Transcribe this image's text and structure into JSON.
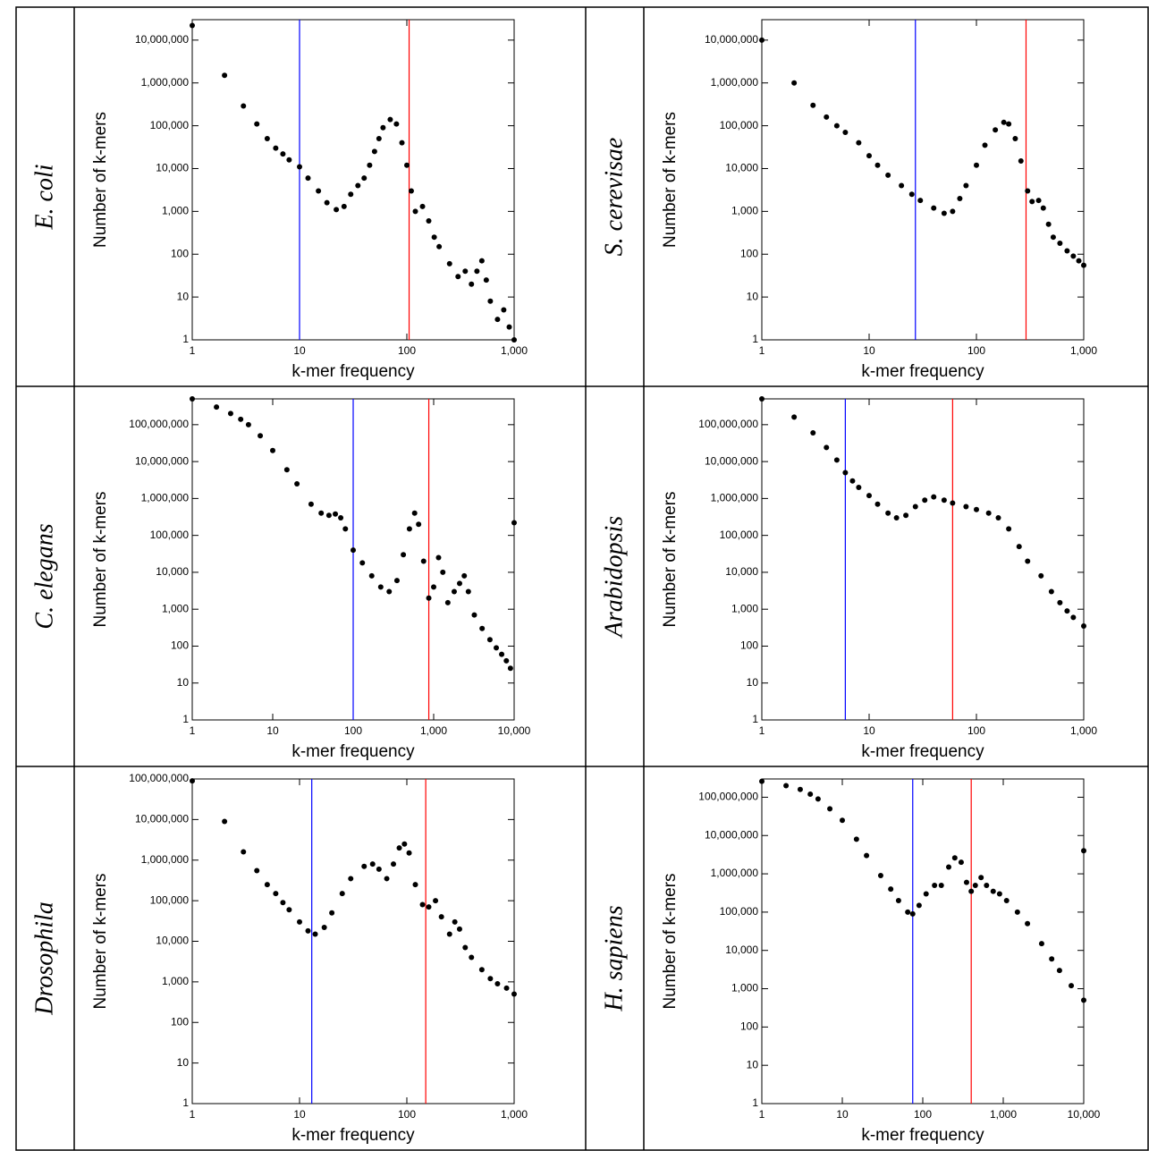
{
  "chart_data": [
    {
      "type": "scatter",
      "title": "E. coli",
      "x_label": "k-mer frequency",
      "y_label": "Number of k-mers",
      "log_x": true,
      "log_y": true,
      "grid": false,
      "xlim": [
        1,
        1000
      ],
      "ylim": [
        1,
        30000000
      ],
      "xticks": [
        1,
        10,
        100,
        {
          "value": 1000,
          "label": "1,000"
        }
      ],
      "yticks": [
        1,
        10,
        100,
        {
          "value": 1000,
          "label": "1,000"
        },
        {
          "value": 10000,
          "label": "10,000"
        },
        {
          "value": 100000,
          "label": "100,000"
        },
        {
          "value": 1000000,
          "label": "1,000,000"
        },
        {
          "value": 10000000,
          "label": "10,000,000"
        }
      ],
      "vlines": [
        {
          "x": 10,
          "color": "#0000ff"
        },
        {
          "x": 105,
          "color": "#ff0000"
        }
      ],
      "series": [
        {
          "color": "#000000",
          "x": [
            1,
            2,
            3,
            4,
            5,
            6,
            7,
            8,
            10,
            12,
            15,
            18,
            22,
            26,
            30,
            35,
            40,
            45,
            50,
            55,
            60,
            70,
            80,
            90,
            100,
            110,
            120,
            140,
            160,
            180,
            200,
            250,
            300,
            350,
            400,
            450,
            500,
            550,
            600,
            700,
            800,
            900,
            1000
          ],
          "y": [
            22000000,
            1500000,
            290000,
            110000,
            50000,
            30000,
            22000,
            16000,
            11000,
            6000,
            3000,
            1600,
            1100,
            1300,
            2500,
            4000,
            6000,
            12000,
            25000,
            50000,
            90000,
            140000,
            110000,
            40000,
            12000,
            3000,
            1000,
            1300,
            600,
            250,
            150,
            60,
            30,
            40,
            20,
            40,
            70,
            25,
            8,
            3,
            5,
            2,
            1
          ]
        }
      ]
    },
    {
      "type": "scatter",
      "title": "S. cerevisae",
      "x_label": "k-mer frequency",
      "y_label": "Number of k-mers",
      "log_x": true,
      "log_y": true,
      "grid": false,
      "xlim": [
        1,
        1000
      ],
      "ylim": [
        1,
        30000000
      ],
      "xticks": [
        1,
        10,
        100,
        {
          "value": 1000,
          "label": "1,000"
        }
      ],
      "yticks": [
        1,
        10,
        100,
        {
          "value": 1000,
          "label": "1,000"
        },
        {
          "value": 10000,
          "label": "10,000"
        },
        {
          "value": 100000,
          "label": "100,000"
        },
        {
          "value": 1000000,
          "label": "1,000,000"
        },
        {
          "value": 10000000,
          "label": "10,000,000"
        }
      ],
      "vlines": [
        {
          "x": 27,
          "color": "#0000ff"
        },
        {
          "x": 290,
          "color": "#ff0000"
        }
      ],
      "series": [
        {
          "color": "#000000",
          "x": [
            1,
            2,
            3,
            4,
            5,
            6,
            8,
            10,
            12,
            15,
            20,
            25,
            30,
            40,
            50,
            60,
            70,
            80,
            100,
            120,
            150,
            180,
            200,
            230,
            260,
            300,
            330,
            380,
            420,
            470,
            520,
            600,
            700,
            800,
            900,
            1000
          ],
          "y": [
            10000000,
            1000000,
            300000,
            160000,
            100000,
            70000,
            40000,
            20000,
            12000,
            7000,
            4000,
            2500,
            1800,
            1200,
            900,
            1000,
            2000,
            4000,
            12000,
            35000,
            80000,
            120000,
            110000,
            50000,
            15000,
            3000,
            1700,
            1800,
            1200,
            500,
            250,
            180,
            120,
            90,
            70,
            55
          ]
        }
      ]
    },
    {
      "type": "scatter",
      "title": "C. elegans",
      "x_label": "k-mer frequency",
      "y_label": "Number of k-mers",
      "log_x": true,
      "log_y": true,
      "grid": false,
      "xlim": [
        1,
        10000
      ],
      "ylim": [
        1,
        500000000
      ],
      "xticks": [
        1,
        10,
        100,
        {
          "value": 1000,
          "label": "1,000"
        },
        {
          "value": 10000,
          "label": "10,000"
        }
      ],
      "yticks": [
        1,
        10,
        100,
        {
          "value": 1000,
          "label": "1,000"
        },
        {
          "value": 10000,
          "label": "10,000"
        },
        {
          "value": 100000,
          "label": "100,000"
        },
        {
          "value": 1000000,
          "label": "1,000,000"
        },
        {
          "value": 10000000,
          "label": "10,000,000"
        },
        {
          "value": 100000000,
          "label": "100,000,000"
        }
      ],
      "vlines": [
        {
          "x": 100,
          "color": "#0000ff"
        },
        {
          "x": 870,
          "color": "#ff0000"
        }
      ],
      "series": [
        {
          "color": "#000000",
          "x": [
            1,
            2,
            3,
            4,
            5,
            7,
            10,
            15,
            20,
            30,
            40,
            50,
            60,
            70,
            80,
            100,
            130,
            170,
            220,
            280,
            350,
            420,
            500,
            580,
            650,
            750,
            870,
            1000,
            1150,
            1300,
            1500,
            1800,
            2100,
            2400,
            2700,
            3200,
            4000,
            5000,
            6000,
            7000,
            8000,
            9000,
            10000
          ],
          "y": [
            500000000,
            300000000,
            200000000,
            140000000,
            100000000,
            50000000,
            20000000,
            6000000,
            2500000,
            700000,
            400000,
            350000,
            380000,
            300000,
            150000,
            40000,
            18000,
            8000,
            4000,
            3000,
            6000,
            30000,
            150000,
            400000,
            200000,
            20000,
            2000,
            4000,
            25000,
            10000,
            1500,
            3000,
            5000,
            8000,
            3000,
            700,
            300,
            150,
            90,
            60,
            40,
            25,
            220000
          ]
        }
      ]
    },
    {
      "type": "scatter",
      "title": "Arabidopsis",
      "x_label": "k-mer frequency",
      "y_label": "Number of k-mers",
      "log_x": true,
      "log_y": true,
      "grid": false,
      "xlim": [
        1,
        1000
      ],
      "ylim": [
        1,
        500000000
      ],
      "xticks": [
        1,
        10,
        100,
        {
          "value": 1000,
          "label": "1,000"
        }
      ],
      "yticks": [
        1,
        10,
        100,
        {
          "value": 1000,
          "label": "1,000"
        },
        {
          "value": 10000,
          "label": "10,000"
        },
        {
          "value": 100000,
          "label": "100,000"
        },
        {
          "value": 1000000,
          "label": "1,000,000"
        },
        {
          "value": 10000000,
          "label": "10,000,000"
        },
        {
          "value": 100000000,
          "label": "100,000,000"
        }
      ],
      "vlines": [
        {
          "x": 6,
          "color": "#0000ff"
        },
        {
          "x": 60,
          "color": "#ff0000"
        }
      ],
      "series": [
        {
          "color": "#000000",
          "x": [
            1,
            2,
            3,
            4,
            5,
            6,
            7,
            8,
            10,
            12,
            15,
            18,
            22,
            27,
            33,
            40,
            50,
            60,
            80,
            100,
            130,
            160,
            200,
            250,
            300,
            400,
            500,
            600,
            700,
            800,
            1000
          ],
          "y": [
            500000000,
            160000000,
            60000000,
            24000000,
            11000000,
            5000000,
            3000000,
            2000000,
            1200000,
            700000,
            400000,
            300000,
            350000,
            600000,
            900000,
            1100000,
            900000,
            750000,
            600000,
            500000,
            400000,
            300000,
            150000,
            50000,
            20000,
            8000,
            3000,
            1500,
            900,
            600,
            350
          ]
        }
      ]
    },
    {
      "type": "scatter",
      "title": "Drosophila",
      "x_label": "k-mer frequency",
      "y_label": "Number of k-mers",
      "log_x": true,
      "log_y": true,
      "grid": false,
      "xlim": [
        1,
        1000
      ],
      "ylim": [
        1,
        100000000
      ],
      "xticks": [
        1,
        10,
        100,
        {
          "value": 1000,
          "label": "1,000"
        }
      ],
      "yticks": [
        1,
        10,
        100,
        {
          "value": 1000,
          "label": "1,000"
        },
        {
          "value": 10000,
          "label": "10,000"
        },
        {
          "value": 100000,
          "label": "100,000"
        },
        {
          "value": 1000000,
          "label": "1,000,000"
        },
        {
          "value": 10000000,
          "label": "10,000,000"
        },
        {
          "value": 100000000,
          "label": "100,000,000"
        }
      ],
      "vlines": [
        {
          "x": 13,
          "color": "#0000ff"
        },
        {
          "x": 150,
          "color": "#ff0000"
        }
      ],
      "series": [
        {
          "color": "#000000",
          "x": [
            1,
            2,
            3,
            4,
            5,
            6,
            7,
            8,
            10,
            12,
            14,
            17,
            20,
            25,
            30,
            40,
            48,
            55,
            65,
            75,
            85,
            95,
            105,
            120,
            140,
            160,
            185,
            210,
            250,
            280,
            310,
            350,
            400,
            500,
            600,
            700,
            850,
            1000
          ],
          "y": [
            90000000,
            9000000,
            1600000,
            550000,
            250000,
            150000,
            90000,
            60000,
            30000,
            18000,
            15000,
            22000,
            50000,
            150000,
            350000,
            700000,
            800000,
            600000,
            350000,
            800000,
            2000000,
            2500000,
            1500000,
            250000,
            80000,
            70000,
            100000,
            40000,
            15000,
            30000,
            20000,
            7000,
            4000,
            2000,
            1200,
            900,
            700,
            500
          ]
        }
      ]
    },
    {
      "type": "scatter",
      "title": "H. sapiens",
      "x_label": "k-mer frequency",
      "y_label": "Number of k-mers",
      "log_x": true,
      "log_y": true,
      "grid": false,
      "xlim": [
        1,
        10000
      ],
      "ylim": [
        1,
        300000000
      ],
      "xticks": [
        1,
        10,
        100,
        {
          "value": 1000,
          "label": "1,000"
        },
        {
          "value": 10000,
          "label": "10,000"
        }
      ],
      "yticks": [
        1,
        10,
        100,
        {
          "value": 1000,
          "label": "1,000"
        },
        {
          "value": 10000,
          "label": "10,000"
        },
        {
          "value": 100000,
          "label": "100,000"
        },
        {
          "value": 1000000,
          "label": "1,000,000"
        },
        {
          "value": 10000000,
          "label": "10,000,000"
        },
        {
          "value": 100000000,
          "label": "100,000,000"
        }
      ],
      "vlines": [
        {
          "x": 75,
          "color": "#0000ff"
        },
        {
          "x": 400,
          "color": "#ff0000"
        }
      ],
      "series": [
        {
          "color": "#000000",
          "x": [
            1,
            2,
            3,
            4,
            5,
            7,
            10,
            15,
            20,
            30,
            40,
            50,
            65,
            75,
            90,
            110,
            140,
            170,
            210,
            250,
            300,
            350,
            400,
            450,
            530,
            620,
            750,
            900,
            1100,
            1500,
            2000,
            3000,
            4000,
            5000,
            7000,
            10000,
            10000
          ],
          "y": [
            260000000,
            200000000,
            160000000,
            120000000,
            90000000,
            50000000,
            25000000,
            8000000,
            3000000,
            900000,
            400000,
            200000,
            100000,
            90000,
            150000,
            300000,
            500000,
            500000,
            1500000,
            2600000,
            2000000,
            600000,
            350000,
            500000,
            800000,
            500000,
            350000,
            300000,
            200000,
            100000,
            50000,
            15000,
            6000,
            3000,
            1200,
            500,
            4000000
          ]
        }
      ]
    }
  ]
}
